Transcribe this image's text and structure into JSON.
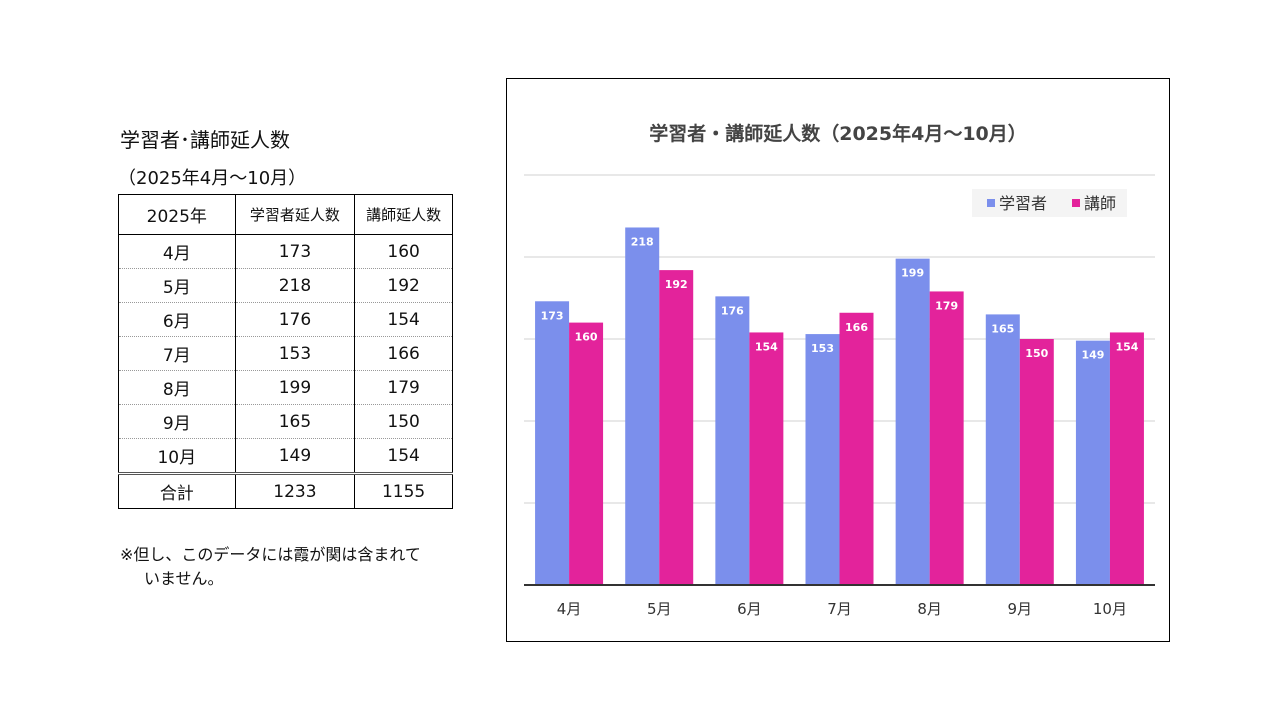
{
  "table": {
    "title": "学習者･講師延人数",
    "subtitle": "（2025年4月～10月）",
    "headers": [
      "2025年",
      "学習者延人数",
      "講師延人数"
    ],
    "rows": [
      {
        "month": "4月",
        "learners": "173",
        "instructors": "160"
      },
      {
        "month": "5月",
        "learners": "218",
        "instructors": "192"
      },
      {
        "month": "6月",
        "learners": "176",
        "instructors": "154"
      },
      {
        "month": "7月",
        "learners": "153",
        "instructors": "166"
      },
      {
        "month": "8月",
        "learners": "199",
        "instructors": "179"
      },
      {
        "month": "9月",
        "learners": "165",
        "instructors": "150"
      },
      {
        "month": "10月",
        "learners": "149",
        "instructors": "154"
      }
    ],
    "total": {
      "label": "合計",
      "learners": "1233",
      "instructors": "1155"
    }
  },
  "note": {
    "line1": "※但し、このデータには霞が関は含まれて",
    "line2": "いません。"
  },
  "chart_data": {
    "type": "bar",
    "title": "学習者・講師延人数（2025年4月～10月）",
    "categories": [
      "4月",
      "5月",
      "6月",
      "7月",
      "8月",
      "9月",
      "10月"
    ],
    "series": [
      {
        "name": "学習者",
        "color": "#7b8fec",
        "values": [
          173,
          218,
          176,
          153,
          199,
          165,
          149
        ]
      },
      {
        "name": "講師",
        "color": "#e3239b",
        "values": [
          160,
          192,
          154,
          166,
          179,
          150,
          154
        ]
      }
    ],
    "ylim": [
      0,
      250
    ],
    "gridlines": [
      50,
      100,
      150,
      200,
      250
    ],
    "legend_position": "top-right",
    "data_labels": true
  }
}
